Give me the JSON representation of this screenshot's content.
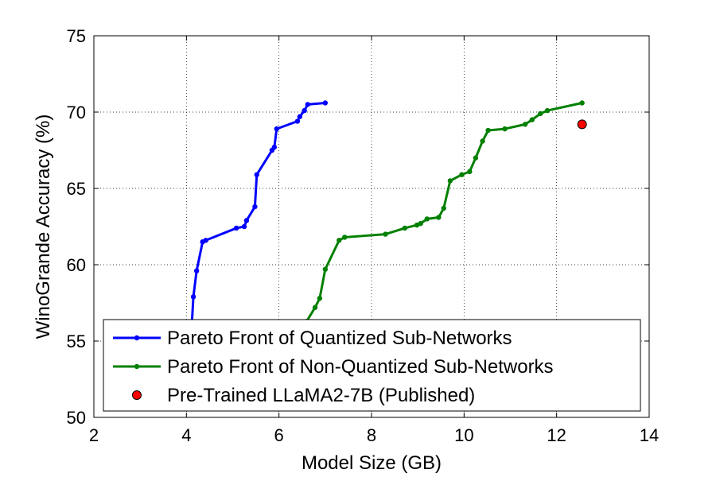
{
  "chart_data": {
    "type": "line",
    "title": "",
    "xlabel": "Model Size (GB)",
    "ylabel": "WinoGrande Accuracy (%)",
    "xlim": [
      2,
      14
    ],
    "ylim": [
      50,
      75
    ],
    "xticks": [
      "2",
      "4",
      "6",
      "8",
      "10",
      "12",
      "14"
    ],
    "yticks": [
      "50",
      "55",
      "60",
      "65",
      "70",
      "75"
    ],
    "grid": true,
    "legend_position": "bottom",
    "series": [
      {
        "name": "Pareto Front of Quantized Sub-Networks",
        "color": "#0000ff",
        "marker": "dot",
        "x": [
          4.1,
          4.15,
          4.22,
          4.35,
          4.42,
          5.08,
          5.25,
          5.3,
          5.48,
          5.52,
          5.85,
          5.9,
          5.95,
          6.4,
          6.45,
          6.55,
          6.62,
          7.0
        ],
        "y": [
          55.2,
          57.9,
          59.6,
          61.5,
          61.6,
          62.4,
          62.5,
          62.9,
          63.8,
          65.9,
          67.5,
          67.7,
          68.9,
          69.4,
          69.7,
          70.1,
          70.5,
          70.6
        ]
      },
      {
        "name": "Pareto Front of Non-Quantized Sub-Networks",
        "color": "#008000",
        "marker": "dot",
        "x": [
          6.6,
          6.78,
          6.88,
          7.0,
          7.3,
          7.42,
          8.3,
          8.72,
          8.98,
          9.06,
          9.2,
          9.45,
          9.56,
          9.7,
          9.95,
          10.12,
          10.25,
          10.4,
          10.52,
          10.88,
          11.32,
          11.47,
          11.65,
          11.8,
          12.55
        ],
        "y": [
          56.3,
          57.2,
          57.8,
          59.7,
          61.6,
          61.8,
          62.0,
          62.4,
          62.6,
          62.7,
          63.0,
          63.1,
          63.7,
          65.5,
          65.9,
          66.1,
          67.0,
          68.1,
          68.8,
          68.9,
          69.2,
          69.5,
          69.9,
          70.1,
          70.6
        ]
      },
      {
        "name": "Pre-Trained LLaMA2-7B (Published)",
        "color": "#ff0000",
        "marker": "circle",
        "x": [
          12.55
        ],
        "y": [
          69.2
        ]
      }
    ]
  }
}
